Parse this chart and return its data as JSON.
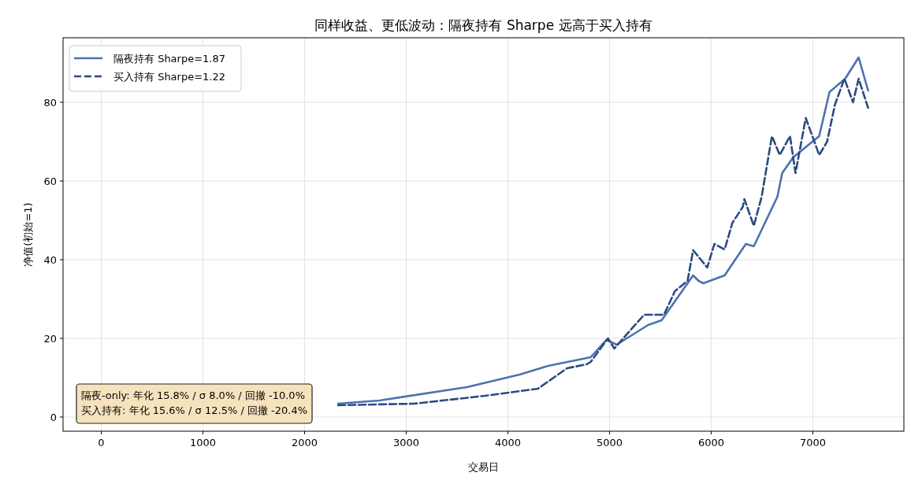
{
  "chart_data": {
    "type": "line",
    "title": "同样收益、更低波动：隔夜持有 Sharpe 远高于买入持有",
    "xlabel": "交易日",
    "ylabel": "净值(初始=1)",
    "xlim": [
      -376,
      7895
    ],
    "ylim": [
      -3.6,
      96.4
    ],
    "xticks": [
      0,
      1000,
      2000,
      3000,
      4000,
      5000,
      6000,
      7000
    ],
    "yticks": [
      0,
      20,
      40,
      60,
      80
    ],
    "grid": true,
    "legend": "top left",
    "series": [
      {
        "name": "隔夜持有 Sharpe=1.87",
        "color": "#4c72b0",
        "line_style": "solid",
        "x": [
          2330,
          2736,
          3597,
          4116,
          4395,
          4814,
          4969,
          5070,
          5380,
          5512,
          5822,
          5876,
          5922,
          6132,
          6341,
          6419,
          6651,
          6698,
          6806,
          7062,
          7163,
          7318,
          7450,
          7543
        ],
        "values": [
          3.4,
          4.2,
          7.6,
          10.8,
          13,
          15.2,
          19.6,
          18.4,
          23.4,
          24.6,
          36,
          34.6,
          34,
          36,
          44,
          43.4,
          56,
          62,
          66,
          71.4,
          82.6,
          86,
          91.4,
          83
        ]
      },
      {
        "name": "买入持有 Sharpe=1.22",
        "color": "#2b4a7e",
        "line_style": "dashed",
        "x": [
          2330,
          3078,
          3775,
          4295,
          4581,
          4775,
          4814,
          4984,
          5047,
          5202,
          5341,
          5535,
          5643,
          5767,
          5822,
          5961,
          6031,
          6132,
          6209,
          6310,
          6326,
          6419,
          6496,
          6597,
          6674,
          6775,
          6829,
          6930,
          7062,
          7140,
          7217,
          7310,
          7395,
          7450,
          7543
        ],
        "values": [
          3,
          3.4,
          5.4,
          7.2,
          12.4,
          13.4,
          14,
          20,
          17.4,
          22,
          26,
          26,
          32,
          34.6,
          42.4,
          38,
          44,
          42.6,
          49.4,
          53.4,
          55.4,
          48.6,
          56,
          71.4,
          66.6,
          71.4,
          62,
          76,
          66.6,
          70,
          79.4,
          86,
          80,
          86,
          78.6
        ]
      }
    ],
    "annotations": [
      "隔夜-only: 年化 15.8% / σ 8.0% / 回撤 -10.0%",
      "买入持有: 年化 15.6% / σ 12.5% / 回撤 -20.4%"
    ]
  }
}
